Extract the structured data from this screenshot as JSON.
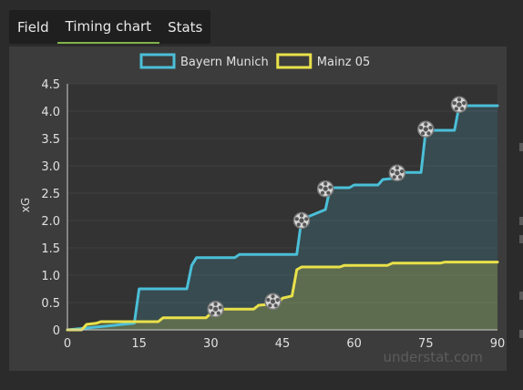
{
  "tabs": [
    {
      "label": "Field"
    },
    {
      "label": "Timing chart"
    },
    {
      "label": "Stats"
    }
  ],
  "active_tab": 1,
  "watermark": "understat.com",
  "chart_data": {
    "type": "line",
    "ylabel": "xG",
    "xlim": [
      0,
      90
    ],
    "ylim": [
      0,
      4.5
    ],
    "x_ticks": [
      0,
      15,
      30,
      45,
      60,
      75,
      90
    ],
    "y_ticks": [
      0,
      0.5,
      1.0,
      1.5,
      2.0,
      2.5,
      3.0,
      3.5,
      4.0,
      4.5
    ],
    "y_tick_labels": [
      "0",
      "0.5",
      "1.0",
      "1.5",
      "2.0",
      "2.5",
      "3.0",
      "3.5",
      "4.0",
      "4.5"
    ],
    "legend_position": "top-center",
    "series": [
      {
        "name": "Bayern Munich",
        "color": "#4bbfd8",
        "fill": "rgba(75,191,216,0.18)",
        "points": [
          [
            0,
            0.0
          ],
          [
            14,
            0.12
          ],
          [
            15,
            0.75
          ],
          [
            25,
            0.75
          ],
          [
            26,
            1.18
          ],
          [
            27,
            1.32
          ],
          [
            35,
            1.32
          ],
          [
            36,
            1.38
          ],
          [
            48,
            1.38
          ],
          [
            49,
            2.02
          ],
          [
            54,
            2.2
          ],
          [
            55,
            2.6
          ],
          [
            59,
            2.6
          ],
          [
            60,
            2.65
          ],
          [
            65,
            2.65
          ],
          [
            66,
            2.75
          ],
          [
            69,
            2.78
          ],
          [
            70,
            2.88
          ],
          [
            74,
            2.88
          ],
          [
            75,
            3.65
          ],
          [
            81,
            3.65
          ],
          [
            82,
            4.1
          ],
          [
            90,
            4.1
          ]
        ],
        "goals": [
          [
            49,
            2.0
          ],
          [
            54,
            2.58
          ],
          [
            69,
            2.87
          ],
          [
            75,
            3.67
          ],
          [
            82,
            4.12
          ]
        ]
      },
      {
        "name": "Mainz 05",
        "color": "#e9e14a",
        "fill": "rgba(233,225,74,0.22)",
        "points": [
          [
            0,
            0.0
          ],
          [
            3,
            0.0
          ],
          [
            4,
            0.1
          ],
          [
            6,
            0.12
          ],
          [
            7,
            0.15
          ],
          [
            19,
            0.15
          ],
          [
            20,
            0.22
          ],
          [
            29,
            0.22
          ],
          [
            30,
            0.3
          ],
          [
            31,
            0.38
          ],
          [
            39,
            0.38
          ],
          [
            40,
            0.45
          ],
          [
            44,
            0.48
          ],
          [
            45,
            0.58
          ],
          [
            47,
            0.62
          ],
          [
            48,
            1.1
          ],
          [
            49,
            1.15
          ],
          [
            57,
            1.15
          ],
          [
            58,
            1.18
          ],
          [
            67,
            1.18
          ],
          [
            68,
            1.22
          ],
          [
            78,
            1.22
          ],
          [
            79,
            1.24
          ],
          [
            90,
            1.24
          ]
        ],
        "goals": [
          [
            31,
            0.38
          ],
          [
            43,
            0.52
          ]
        ]
      }
    ]
  }
}
